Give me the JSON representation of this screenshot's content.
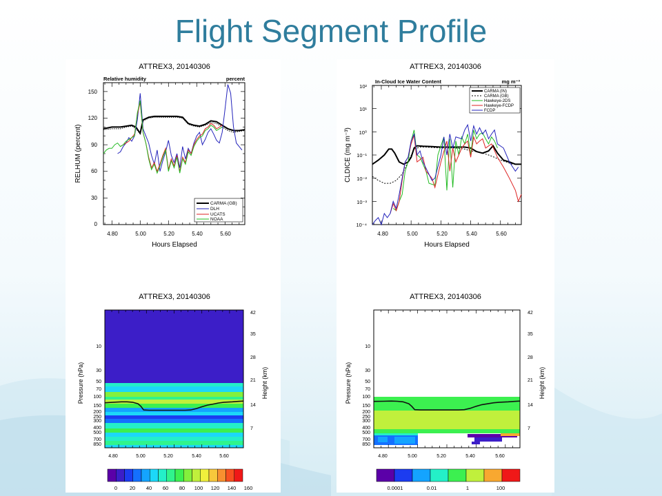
{
  "slide": {
    "title": "Flight Segment Profile"
  },
  "chart_data": [
    {
      "type": "line",
      "title": "ATTREX3, 20140306",
      "subtitle_left": "Relative humidity",
      "subtitle_right": "percent",
      "xlabel": "Hours Elapsed",
      "ylabel": "RELHUM (percent)",
      "xlim": [
        4.74,
        5.74
      ],
      "ylim": [
        0,
        160
      ],
      "xticks": [
        "4.80",
        "5.00",
        "5.20",
        "5.40",
        "5.60"
      ],
      "yticks": [
        "0",
        "30",
        "60",
        "90",
        "120",
        "150"
      ],
      "legend_position": "bottom-right",
      "series": [
        {
          "name": "CARMA (GB)",
          "color": "#000000",
          "dash": "solid",
          "x": [
            4.74,
            4.8,
            4.86,
            4.9,
            4.94,
            4.97,
            5.0,
            5.02,
            5.06,
            5.1,
            5.14,
            5.2,
            5.26,
            5.3,
            5.34,
            5.38,
            5.42,
            5.46,
            5.5,
            5.54,
            5.58,
            5.62,
            5.66,
            5.7,
            5.74
          ],
          "y": [
            108,
            110,
            110,
            111,
            112,
            110,
            103,
            118,
            121,
            122,
            122,
            122,
            122,
            121,
            114,
            112,
            111,
            113,
            117,
            116,
            112,
            108,
            106,
            106,
            107
          ]
        },
        {
          "name": "",
          "color": "#000000",
          "dash": "dotted",
          "x": [
            4.74,
            4.8,
            4.86,
            4.9,
            4.94,
            4.97,
            5.0,
            5.02,
            5.06,
            5.1,
            5.14,
            5.2,
            5.26,
            5.3,
            5.34,
            5.38,
            5.42,
            5.46,
            5.5,
            5.54,
            5.58,
            5.62,
            5.66,
            5.7,
            5.74
          ],
          "y": [
            107,
            108,
            108,
            110,
            111,
            108,
            102,
            117,
            120,
            121,
            121,
            121,
            121,
            120,
            113,
            111,
            110,
            112,
            115,
            114,
            110,
            106,
            104,
            105,
            106
          ]
        },
        {
          "name": "DLH",
          "color": "#2222bb",
          "dash": "solid",
          "x": [
            4.84,
            4.86,
            4.88,
            4.9,
            4.92,
            4.94,
            4.96,
            4.98,
            5.0,
            5.02,
            5.04,
            5.06,
            5.08,
            5.1,
            5.12,
            5.14,
            5.16,
            5.18,
            5.2,
            5.22,
            5.24,
            5.26,
            5.28,
            5.3,
            5.32,
            5.34,
            5.36,
            5.38,
            5.4,
            5.42,
            5.44,
            5.46,
            5.48,
            5.5,
            5.52,
            5.54,
            5.56,
            5.58,
            5.6,
            5.62,
            5.64,
            5.66,
            5.68,
            5.7,
            5.72
          ],
          "y": [
            80,
            82,
            88,
            92,
            98,
            94,
            100,
            118,
            148,
            108,
            100,
            92,
            78,
            68,
            84,
            60,
            72,
            82,
            95,
            78,
            70,
            80,
            64,
            88,
            74,
            86,
            80,
            92,
            100,
            104,
            90,
            96,
            104,
            108,
            102,
            95,
            92,
            104,
            130,
            158,
            148,
            110,
            92,
            88,
            84
          ]
        },
        {
          "name": "UCATS",
          "color": "#dd2222",
          "dash": "solid",
          "x": [
            4.86,
            4.88,
            4.9,
            4.92,
            4.94,
            4.96,
            4.98,
            5.0,
            5.02,
            5.04,
            5.06,
            5.08,
            5.1,
            5.12,
            5.14,
            5.16,
            5.18,
            5.2,
            5.22,
            5.24,
            5.26,
            5.28,
            5.3,
            5.32,
            5.34,
            5.36,
            5.38,
            5.4,
            5.42,
            5.44,
            5.46,
            5.48,
            5.5,
            5.52,
            5.54,
            5.56,
            5.58
          ],
          "y": [
            88,
            90,
            92,
            94,
            98,
            102,
            124,
            138,
            104,
            92,
            76,
            64,
            70,
            60,
            68,
            78,
            86,
            62,
            74,
            66,
            78,
            60,
            76,
            70,
            84,
            80,
            90,
            96,
            100,
            102,
            108,
            110,
            114,
            112,
            108,
            110,
            112
          ]
        },
        {
          "name": "NOAA",
          "color": "#22bb22",
          "dash": "solid",
          "x": [
            4.74,
            4.76,
            4.78,
            4.8,
            4.82,
            4.84,
            4.86,
            4.88,
            4.9,
            4.92,
            4.94,
            4.96,
            4.98,
            5.0,
            5.02,
            5.04,
            5.06,
            5.08,
            5.1,
            5.12,
            5.14,
            5.16,
            5.18,
            5.2,
            5.22,
            5.24,
            5.26,
            5.28,
            5.3,
            5.32,
            5.34,
            5.36,
            5.38,
            5.4,
            5.42,
            5.44,
            5.46,
            5.48,
            5.5,
            5.52,
            5.54,
            5.56,
            5.58
          ],
          "y": [
            80,
            84,
            86,
            86,
            90,
            92,
            88,
            90,
            94,
            96,
            98,
            100,
            126,
            140,
            104,
            92,
            74,
            62,
            68,
            58,
            66,
            76,
            84,
            60,
            72,
            64,
            76,
            58,
            74,
            68,
            82,
            78,
            88,
            94,
            98,
            100,
            106,
            108,
            112,
            110,
            106,
            108,
            110
          ]
        }
      ]
    },
    {
      "type": "line",
      "title": "ATTREX3, 20140306",
      "subtitle_left": "In-Cloud Ice Water Content",
      "subtitle_right": "mg m⁻³",
      "xlabel": "Hours Elapsed",
      "ylabel": "CLDICE (mg m⁻³)",
      "yscale": "log",
      "xlim": [
        4.74,
        5.74
      ],
      "ylim": [
        0.0001,
        100
      ],
      "xticks": [
        "4.80",
        "5.00",
        "5.20",
        "5.40",
        "5.60"
      ],
      "yticks": [
        "10⁻⁴",
        "10⁻³",
        "10⁻²",
        "10⁻¹",
        "10⁰",
        "10¹",
        "10²"
      ],
      "legend_position": "top-right",
      "series": [
        {
          "name": "CARMA (IN)",
          "color": "#000000",
          "dash": "solid",
          "x": [
            4.74,
            4.78,
            4.82,
            4.85,
            4.87,
            4.89,
            4.92,
            4.95,
            4.98,
            5.0,
            5.02,
            5.04,
            5.08,
            5.14,
            5.2,
            5.26,
            5.32,
            5.36,
            5.4,
            5.44,
            5.48,
            5.52,
            5.55,
            5.58,
            5.62,
            5.66,
            5.7,
            5.74
          ],
          "y": [
            0.04,
            0.06,
            0.1,
            0.18,
            0.18,
            0.12,
            0.05,
            0.04,
            0.05,
            0.08,
            0.2,
            0.25,
            0.24,
            0.23,
            0.22,
            0.22,
            0.22,
            0.22,
            0.2,
            0.14,
            0.12,
            0.15,
            0.25,
            0.12,
            0.06,
            0.05,
            0.04,
            0.04
          ]
        },
        {
          "name": "CARMA (GB)",
          "color": "#000000",
          "dash": "dashed",
          "x": [
            4.74,
            4.78,
            4.82,
            4.86,
            4.9,
            4.94,
            4.98,
            5.02,
            5.06,
            5.1,
            5.2,
            5.3,
            5.36,
            5.4,
            5.44,
            5.48,
            5.52,
            5.56,
            5.6,
            5.64,
            5.68,
            5.72
          ],
          "y": [
            0.012,
            0.008,
            0.006,
            0.006,
            0.008,
            0.015,
            0.05,
            0.18,
            0.22,
            0.22,
            0.2,
            0.2,
            0.18,
            0.15,
            0.14,
            0.12,
            0.1,
            0.08,
            0.06,
            0.05,
            0.04,
            0.04
          ]
        },
        {
          "name": "Hawkeye-2DS",
          "color": "#22bb22",
          "dash": "solid",
          "x": [
            4.88,
            4.9,
            4.92,
            4.94,
            4.96,
            4.98,
            5.0,
            5.02,
            5.04,
            5.06,
            5.1,
            5.12,
            5.16,
            5.18,
            5.22,
            5.24,
            5.26,
            5.28,
            5.3,
            5.32,
            5.34,
            5.36,
            5.38,
            5.4,
            5.42,
            5.44,
            5.46,
            5.48,
            5.5,
            5.52,
            5.54,
            5.56,
            5.58
          ],
          "y": [
            0.0005,
            0.0004,
            0.001,
            0.002,
            0.02,
            0.05,
            0.4,
            1.2,
            0.1,
            0.08,
            0.02,
            0.006,
            0.005,
            0.1,
            0.6,
            0.003,
            0.5,
            0.004,
            0.4,
            0.1,
            0.6,
            0.3,
            0.8,
            0.1,
            1.2,
            0.5,
            0.8,
            0.9,
            0.5,
            0.3,
            0.6,
            0.4,
            0.2
          ]
        },
        {
          "name": "Hawkeye-FCDP",
          "color": "#dd2222",
          "dash": "solid",
          "x": [
            4.86,
            4.88,
            4.9,
            4.92,
            4.94,
            4.96,
            4.98,
            5.0,
            5.02,
            5.04,
            5.08,
            5.1,
            5.14,
            5.16,
            5.2,
            5.24,
            5.26,
            5.28,
            5.3,
            5.34,
            5.36,
            5.38,
            5.4,
            5.42,
            5.44,
            5.46,
            5.48,
            5.5,
            5.54,
            5.58,
            5.62,
            5.66,
            5.7,
            5.72,
            5.74
          ],
          "y": [
            0.0003,
            0.0008,
            0.0004,
            0.001,
            0.008,
            0.05,
            0.08,
            0.3,
            0.7,
            0.05,
            0.08,
            0.02,
            0.01,
            0.004,
            0.05,
            0.4,
            0.02,
            0.2,
            0.05,
            0.2,
            0.3,
            0.4,
            0.08,
            0.6,
            0.3,
            0.4,
            0.5,
            0.2,
            0.3,
            0.08,
            0.03,
            0.01,
            0.003,
            0.001,
            0.002
          ]
        },
        {
          "name": "FCDP",
          "color": "#2222bb",
          "dash": "solid",
          "x": [
            4.74,
            4.76,
            4.78,
            4.8,
            4.82,
            4.84,
            4.86,
            4.88,
            4.9,
            4.92,
            4.94,
            4.96,
            4.98,
            5.0,
            5.02,
            5.04,
            5.06,
            5.08,
            5.14,
            5.16,
            5.2,
            5.22,
            5.24,
            5.26,
            5.28,
            5.3,
            5.34,
            5.36,
            5.38,
            5.4,
            5.42,
            5.44,
            5.46,
            5.48,
            5.5,
            5.52,
            5.54,
            5.56,
            5.58,
            5.62,
            5.66,
            5.7,
            5.72
          ],
          "y": [
            0.0001,
            0.00015,
            0.0002,
            0.0001,
            0.0003,
            0.0002,
            0.0003,
            0.001,
            0.0005,
            0.002,
            0.01,
            0.05,
            0.08,
            0.4,
            0.8,
            0.1,
            0.15,
            0.05,
            0.008,
            0.01,
            0.1,
            0.6,
            0.1,
            0.8,
            0.2,
            0.6,
            0.5,
            1.2,
            2,
            0.4,
            1.8,
            0.8,
            1.5,
            0.8,
            1.2,
            0.5,
            0.8,
            1.2,
            0.3,
            0.2,
            0.05,
            0.02,
            0.03
          ]
        }
      ]
    },
    {
      "type": "heatmap",
      "title": "ATTREX3, 20140306",
      "xlabel": "",
      "ylabel": "Pressure (hPa)",
      "ylabel_right": "Height (km)",
      "xlim": [
        4.74,
        5.74
      ],
      "xticks": [
        "4.80",
        "5.00",
        "5.20",
        "5.40",
        "5.60"
      ],
      "yticks_left": [
        "10",
        "30",
        "50",
        "70",
        "100",
        "150",
        "200",
        "250",
        "300",
        "400",
        "500",
        "700",
        "850"
      ],
      "yticks_right": [
        "42",
        "35",
        "28",
        "21",
        "14",
        "7"
      ],
      "colorbar": {
        "labels": [
          "0",
          "20",
          "40",
          "60",
          "80",
          "100",
          "120",
          "140",
          "160"
        ],
        "colors": [
          "#5b00a8",
          "#3c1ec8",
          "#1c3cf0",
          "#1470ff",
          "#14a4ff",
          "#1cd8f8",
          "#24f0c8",
          "#30f48c",
          "#3cf050",
          "#84f03c",
          "#c0f03c",
          "#f0f03c",
          "#f8c83c",
          "#f89030",
          "#f85020",
          "#f01818"
        ]
      },
      "flight_pressure": {
        "x": [
          4.74,
          4.8,
          4.86,
          4.9,
          4.94,
          4.98,
          5.0,
          5.02,
          5.06,
          5.12,
          5.2,
          5.26,
          5.32,
          5.36,
          5.4,
          5.44,
          5.48,
          5.52,
          5.56,
          5.6,
          5.66,
          5.7,
          5.74
        ],
        "y": [
          105,
          102,
          100,
          100,
          102,
          110,
          125,
          150,
          152,
          152,
          152,
          152,
          152,
          150,
          140,
          128,
          118,
          112,
          106,
          102,
          100,
          98,
          96
        ]
      }
    },
    {
      "type": "heatmap",
      "title": "ATTREX3, 20140306",
      "xlabel": "",
      "ylabel": "Pressure (hPa)",
      "ylabel_right": "Height (km)",
      "xlim": [
        4.74,
        5.74
      ],
      "xticks": [
        "4.80",
        "5.00",
        "5.20",
        "5.40",
        "5.60"
      ],
      "yticks_left": [
        "10",
        "30",
        "50",
        "70",
        "100",
        "150",
        "200",
        "250",
        "300",
        "400",
        "500",
        "700",
        "850"
      ],
      "yticks_right": [
        "42",
        "35",
        "28",
        "21",
        "14",
        "7"
      ],
      "colorbar": {
        "labels": [
          "0.0001",
          "0.01",
          "1",
          "100"
        ],
        "colors": [
          "#5b00a8",
          "#1c3cf0",
          "#14a4ff",
          "#24f0c8",
          "#3cf050",
          "#c0f03c",
          "#f8a830",
          "#f01818"
        ]
      },
      "flight_pressure": {
        "x": [
          4.74,
          4.8,
          4.86,
          4.9,
          4.94,
          4.98,
          5.0,
          5.02,
          5.06,
          5.12,
          5.2,
          5.26,
          5.32,
          5.36,
          5.4,
          5.44,
          5.48,
          5.52,
          5.56,
          5.6,
          5.66,
          5.7,
          5.74
        ],
        "y": [
          98,
          97,
          96,
          97,
          100,
          110,
          125,
          148,
          150,
          150,
          150,
          150,
          150,
          148,
          138,
          125,
          115,
          110,
          105,
          102,
          100,
          98,
          96
        ]
      }
    }
  ]
}
